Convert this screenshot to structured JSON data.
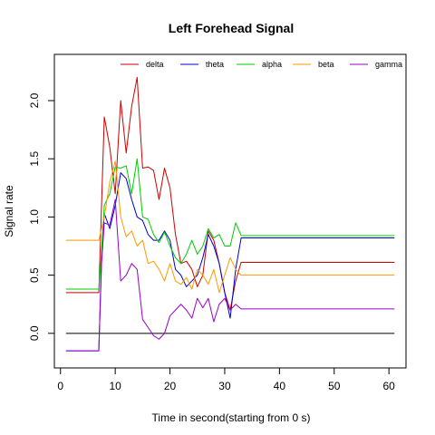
{
  "chart_data": {
    "type": "line",
    "title": "Left Forehead Signal",
    "xlabel": "Time in second(starting from 0 s)",
    "ylabel": "Signal rate",
    "xlim": [
      1,
      61
    ],
    "ylim": [
      -0.2,
      2.3
    ],
    "xticks": [
      0,
      10,
      20,
      30,
      40,
      50,
      60
    ],
    "yticks": [
      0.0,
      0.5,
      1.0,
      1.5,
      2.0
    ],
    "ytick_labels": [
      "0.0",
      "0.5",
      "1.0",
      "1.5",
      "2.0"
    ],
    "legend_position": "top",
    "reference_line": {
      "y": 0,
      "color": "#000000"
    },
    "series": [
      {
        "name": "delta",
        "color": "#cc0000",
        "points": [
          [
            1,
            0.35
          ],
          [
            7,
            0.35
          ],
          [
            8,
            1.86
          ],
          [
            9,
            1.6
          ],
          [
            10,
            1.2
          ],
          [
            11,
            2.0
          ],
          [
            12,
            1.55
          ],
          [
            13,
            1.95
          ],
          [
            14,
            2.2
          ],
          [
            15,
            1.42
          ],
          [
            16,
            1.43
          ],
          [
            17,
            1.4
          ],
          [
            18,
            1.15
          ],
          [
            19,
            1.42
          ],
          [
            20,
            1.25
          ],
          [
            21,
            0.85
          ],
          [
            22,
            0.6
          ],
          [
            23,
            0.62
          ],
          [
            24,
            0.55
          ],
          [
            25,
            0.4
          ],
          [
            26,
            0.5
          ],
          [
            27,
            0.88
          ],
          [
            28,
            0.8
          ],
          [
            29,
            0.6
          ],
          [
            30,
            0.35
          ],
          [
            31,
            0.2
          ],
          [
            32,
            0.45
          ],
          [
            33,
            0.61
          ],
          [
            61,
            0.61
          ]
        ]
      },
      {
        "name": "theta",
        "color": "#0000cc",
        "points": [
          [
            1,
            -0.15
          ],
          [
            7,
            -0.15
          ],
          [
            7.5,
            0.65
          ],
          [
            8,
            1.03
          ],
          [
            9,
            0.9
          ],
          [
            10,
            1.1
          ],
          [
            11,
            1.38
          ],
          [
            12,
            1.33
          ],
          [
            13,
            1.15
          ],
          [
            14,
            1.0
          ],
          [
            15,
            0.97
          ],
          [
            16,
            0.85
          ],
          [
            17,
            0.8
          ],
          [
            18,
            0.8
          ],
          [
            19,
            0.88
          ],
          [
            20,
            0.8
          ],
          [
            21,
            0.55
          ],
          [
            22,
            0.5
          ],
          [
            23,
            0.4
          ],
          [
            24,
            0.45
          ],
          [
            25,
            0.5
          ],
          [
            26,
            0.65
          ],
          [
            27,
            0.85
          ],
          [
            28,
            0.75
          ],
          [
            29,
            0.6
          ],
          [
            30,
            0.35
          ],
          [
            31,
            0.13
          ],
          [
            32,
            0.55
          ],
          [
            33,
            0.82
          ],
          [
            61,
            0.82
          ]
        ]
      },
      {
        "name": "alpha",
        "color": "#00cc00",
        "points": [
          [
            1,
            0.38
          ],
          [
            7,
            0.38
          ],
          [
            7.5,
            0.7
          ],
          [
            8,
            1.1
          ],
          [
            9,
            1.2
          ],
          [
            10,
            1.43
          ],
          [
            11,
            1.42
          ],
          [
            12,
            1.44
          ],
          [
            13,
            1.2
          ],
          [
            14,
            1.5
          ],
          [
            15,
            1.0
          ],
          [
            16,
            0.98
          ],
          [
            17,
            0.85
          ],
          [
            18,
            0.78
          ],
          [
            19,
            0.87
          ],
          [
            20,
            0.75
          ],
          [
            21,
            0.65
          ],
          [
            22,
            0.6
          ],
          [
            23,
            0.68
          ],
          [
            24,
            0.8
          ],
          [
            25,
            0.68
          ],
          [
            26,
            0.75
          ],
          [
            27,
            0.9
          ],
          [
            28,
            0.82
          ],
          [
            29,
            0.85
          ],
          [
            30,
            0.75
          ],
          [
            31,
            0.75
          ],
          [
            32,
            0.95
          ],
          [
            33,
            0.84
          ],
          [
            61,
            0.84
          ]
        ]
      },
      {
        "name": "beta",
        "color": "#ff9900",
        "points": [
          [
            1,
            0.8
          ],
          [
            7,
            0.8
          ],
          [
            8,
            1.0
          ],
          [
            9,
            1.3
          ],
          [
            10,
            1.48
          ],
          [
            11,
            1.0
          ],
          [
            12,
            0.83
          ],
          [
            13,
            0.88
          ],
          [
            14,
            0.75
          ],
          [
            15,
            0.8
          ],
          [
            16,
            0.6
          ],
          [
            17,
            0.62
          ],
          [
            18,
            0.55
          ],
          [
            19,
            0.45
          ],
          [
            20,
            0.6
          ],
          [
            21,
            0.45
          ],
          [
            22,
            0.42
          ],
          [
            23,
            0.48
          ],
          [
            24,
            0.38
          ],
          [
            25,
            0.55
          ],
          [
            26,
            0.5
          ],
          [
            27,
            0.42
          ],
          [
            28,
            0.55
          ],
          [
            29,
            0.35
          ],
          [
            30,
            0.5
          ],
          [
            31,
            0.65
          ],
          [
            32,
            0.55
          ],
          [
            33,
            0.5
          ],
          [
            61,
            0.5
          ]
        ]
      },
      {
        "name": "gamma",
        "color": "#9900cc",
        "points": [
          [
            1,
            -0.15
          ],
          [
            7,
            -0.15
          ],
          [
            7.5,
            0.6
          ],
          [
            8,
            0.95
          ],
          [
            9,
            0.93
          ],
          [
            10,
            1.15
          ],
          [
            11,
            0.45
          ],
          [
            12,
            0.5
          ],
          [
            13,
            0.6
          ],
          [
            14,
            0.55
          ],
          [
            15,
            0.12
          ],
          [
            16,
            0.05
          ],
          [
            17,
            -0.02
          ],
          [
            18,
            -0.05
          ],
          [
            19,
            0.0
          ],
          [
            20,
            0.15
          ],
          [
            21,
            0.2
          ],
          [
            22,
            0.25
          ],
          [
            23,
            0.2
          ],
          [
            24,
            0.13
          ],
          [
            25,
            0.3
          ],
          [
            26,
            0.22
          ],
          [
            27,
            0.3
          ],
          [
            28,
            0.1
          ],
          [
            29,
            0.25
          ],
          [
            30,
            0.3
          ],
          [
            31,
            0.2
          ],
          [
            32,
            0.25
          ],
          [
            33,
            0.21
          ],
          [
            61,
            0.21
          ]
        ]
      }
    ]
  }
}
